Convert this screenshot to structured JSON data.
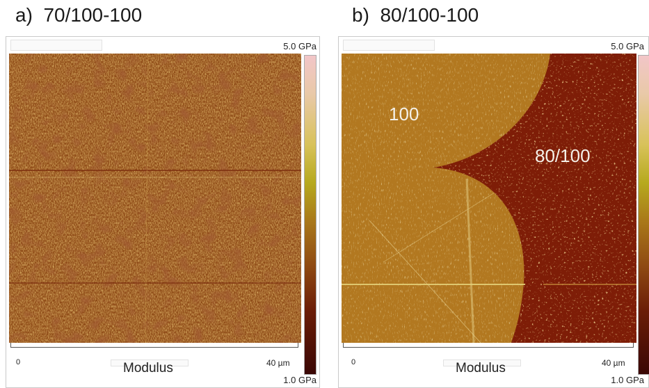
{
  "panels": [
    {
      "title": "a)  70/100-100",
      "scale_max": "5.0 GPa",
      "scale_min": "1.0 GPa",
      "axis_origin": "0",
      "axis_end": "40 µm",
      "axis_label": "Modulus",
      "region_labels": []
    },
    {
      "title": "b)  80/100-100",
      "scale_max": "5.0 GPa",
      "scale_min": "1.0 GPa",
      "axis_origin": "0",
      "axis_end": "40 µm",
      "axis_label": "Modulus",
      "region_labels": [
        "100",
        "80/100"
      ]
    }
  ],
  "colors": {
    "high_modulus": "#f2c6c8",
    "mid_modulus": "#b6a91e",
    "low_modulus": "#3a0705",
    "light_phase": "#b0781f",
    "dark_phase": "#7a1d07"
  }
}
